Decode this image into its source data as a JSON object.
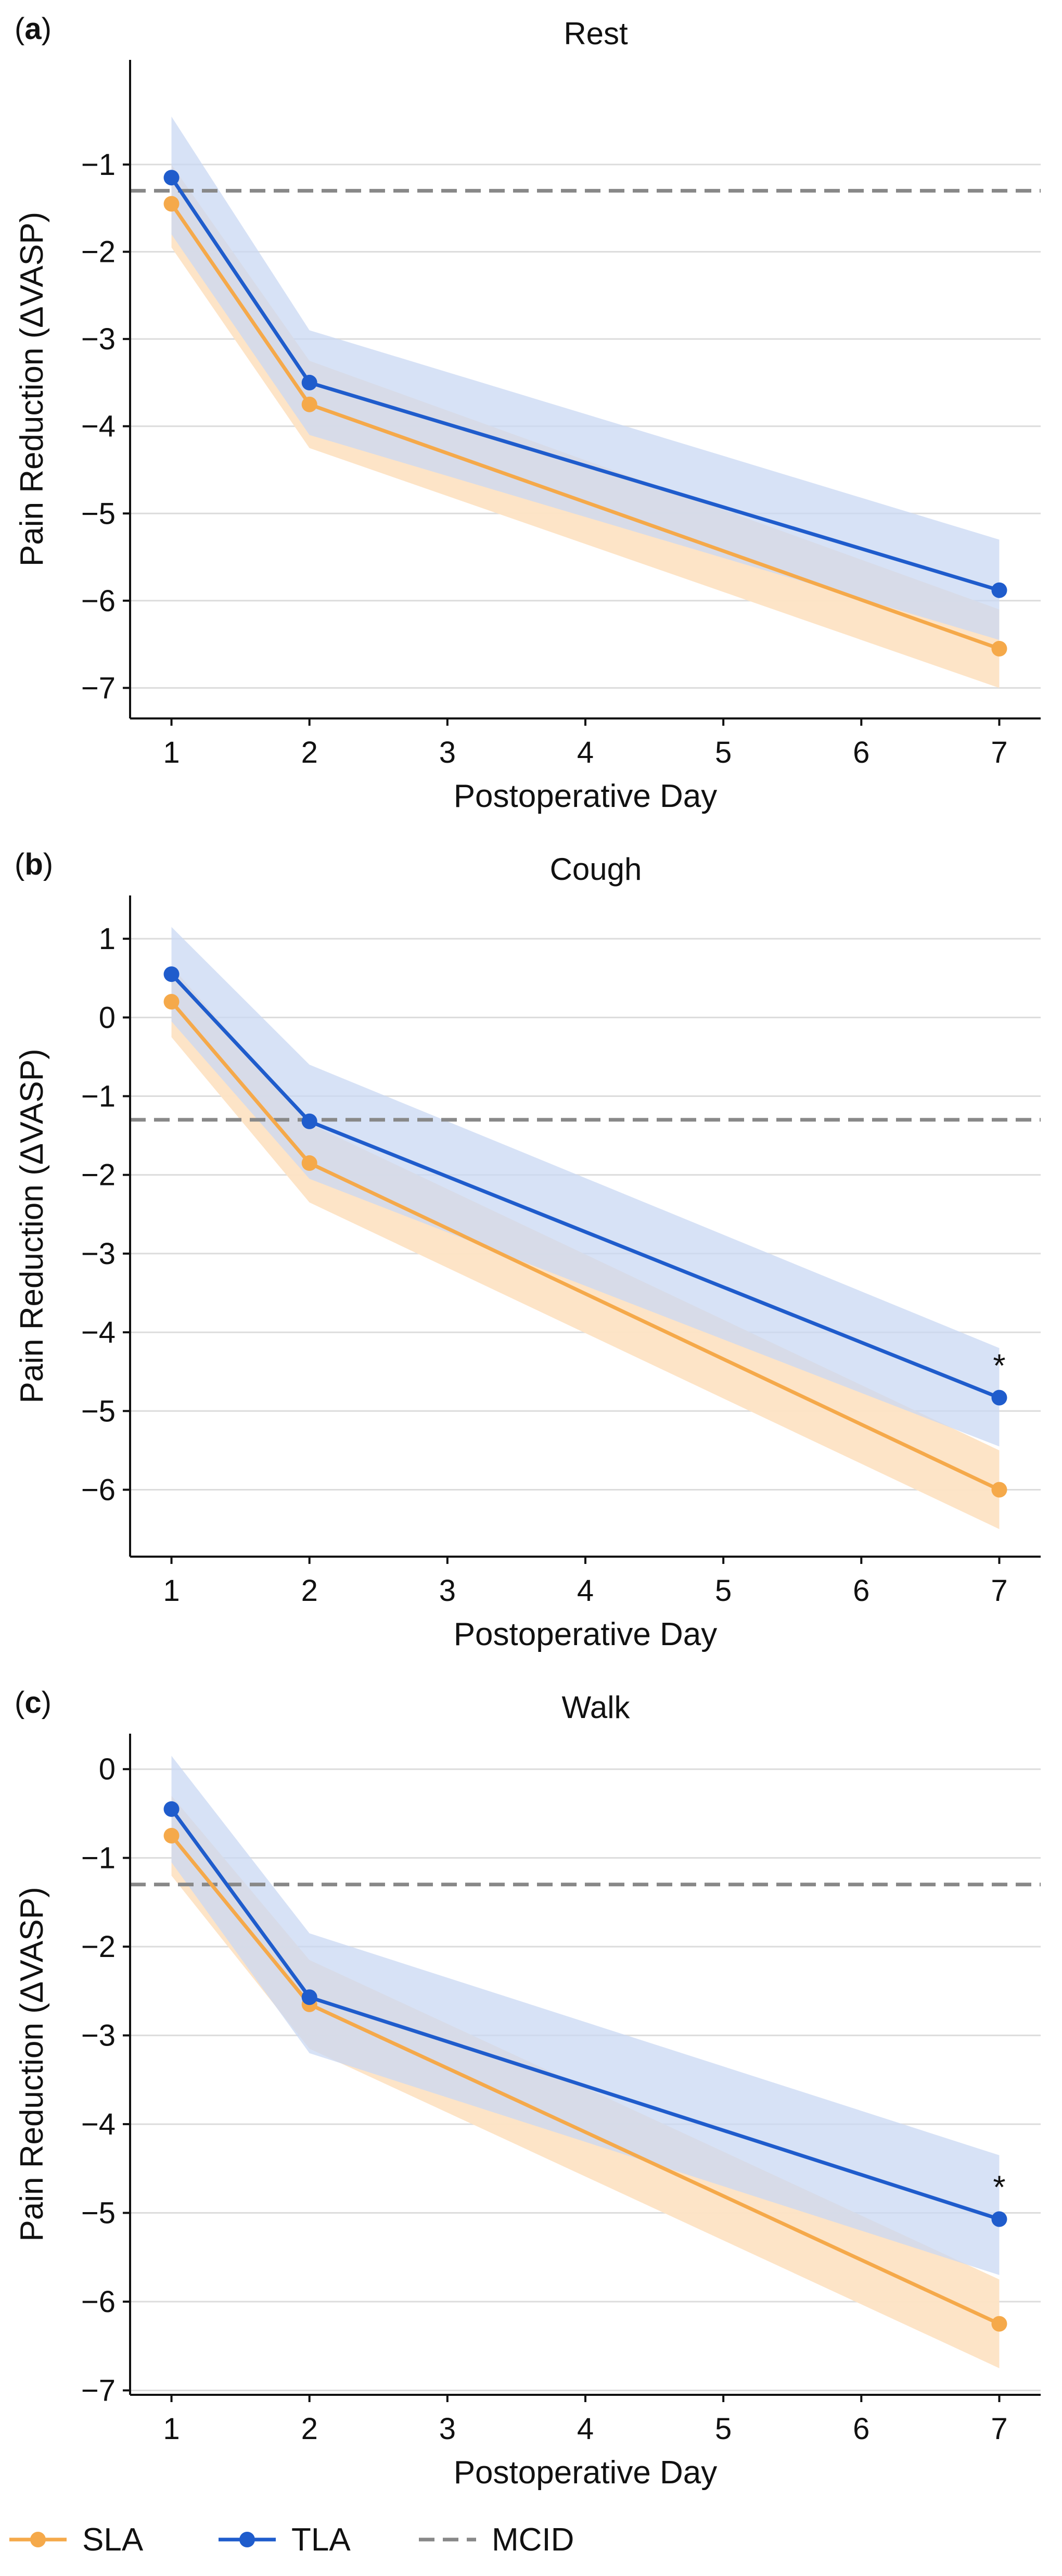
{
  "colors": {
    "SLA": "#f5a94a",
    "TLA": "#1f5ccc",
    "SLA_band": "#fde3c4",
    "TLA_band": "#c9d8f3",
    "MCID": "#888888",
    "grid": "#dcdcdc"
  },
  "legend": {
    "placement": "bottom",
    "items": [
      {
        "label": "SLA",
        "kind": "line-marker",
        "color": "#f5a94a"
      },
      {
        "label": "TLA",
        "kind": "line-marker",
        "color": "#1f5ccc"
      },
      {
        "label": "MCID",
        "kind": "dashed",
        "color": "#888888"
      }
    ]
  },
  "chart_data": [
    {
      "type": "line",
      "panel_label_letter": "a",
      "title": "Rest",
      "xlabel": "Postoperative Day",
      "ylabel": "Pain Reduction (ΔVASP)",
      "x": [
        1,
        2,
        7
      ],
      "xticks": [
        1,
        2,
        3,
        4,
        5,
        6,
        7
      ],
      "xlim": [
        0.7,
        7.3
      ],
      "yticks": [
        -1,
        -2,
        -3,
        -4,
        -5,
        -6,
        -7
      ],
      "ylim": [
        -7.35,
        0.2
      ],
      "grid": "horizontal",
      "mcid": -1.3,
      "series": [
        {
          "name": "SLA",
          "values": [
            -1.45,
            -3.75,
            -6.55
          ],
          "lower": [
            -1.95,
            -4.25,
            -7.0
          ],
          "upper": [
            -1.0,
            -3.25,
            -6.1
          ]
        },
        {
          "name": "TLA",
          "values": [
            -1.15,
            -3.5,
            -5.88
          ],
          "lower": [
            -1.8,
            -4.1,
            -6.45
          ],
          "upper": [
            -0.45,
            -2.9,
            -5.3
          ]
        }
      ],
      "annotations": []
    },
    {
      "type": "line",
      "panel_label_letter": "b",
      "title": "Cough",
      "xlabel": "Postoperative Day",
      "ylabel": "Pain Reduction (ΔVASP)",
      "x": [
        1,
        2,
        7
      ],
      "xticks": [
        1,
        2,
        3,
        4,
        5,
        6,
        7
      ],
      "xlim": [
        0.7,
        7.3
      ],
      "yticks": [
        1,
        0,
        -1,
        -2,
        -3,
        -4,
        -5,
        -6
      ],
      "ylim": [
        -6.85,
        1.55
      ],
      "grid": "horizontal",
      "mcid": -1.3,
      "series": [
        {
          "name": "SLA",
          "values": [
            0.2,
            -1.85,
            -6.0
          ],
          "lower": [
            -0.25,
            -2.35,
            -6.5
          ],
          "upper": [
            0.65,
            -1.35,
            -5.5
          ]
        },
        {
          "name": "TLA",
          "values": [
            0.55,
            -1.32,
            -4.83
          ],
          "lower": [
            -0.05,
            -2.05,
            -5.45
          ],
          "upper": [
            1.15,
            -0.6,
            -4.2
          ]
        }
      ],
      "annotations": [
        {
          "x": 7,
          "text": "*"
        }
      ]
    },
    {
      "type": "line",
      "panel_label_letter": "c",
      "title": "Walk",
      "xlabel": "Postoperative Day",
      "ylabel": "Pain Reduction (ΔVASP)",
      "x": [
        1,
        2,
        7
      ],
      "xticks": [
        1,
        2,
        3,
        4,
        5,
        6,
        7
      ],
      "xlim": [
        0.7,
        7.3
      ],
      "yticks": [
        0,
        -1,
        -2,
        -3,
        -4,
        -5,
        -6,
        -7
      ],
      "ylim": [
        -7.05,
        0.4
      ],
      "grid": "horizontal",
      "mcid": -1.3,
      "series": [
        {
          "name": "SLA",
          "values": [
            -0.75,
            -2.65,
            -6.25
          ],
          "lower": [
            -1.2,
            -3.15,
            -6.75
          ],
          "upper": [
            -0.3,
            -2.15,
            -5.75
          ]
        },
        {
          "name": "TLA",
          "values": [
            -0.45,
            -2.57,
            -5.07
          ],
          "lower": [
            -1.05,
            -3.2,
            -5.7
          ],
          "upper": [
            0.15,
            -1.85,
            -4.35
          ]
        }
      ],
      "annotations": [
        {
          "x": 7,
          "text": "*"
        }
      ]
    }
  ]
}
